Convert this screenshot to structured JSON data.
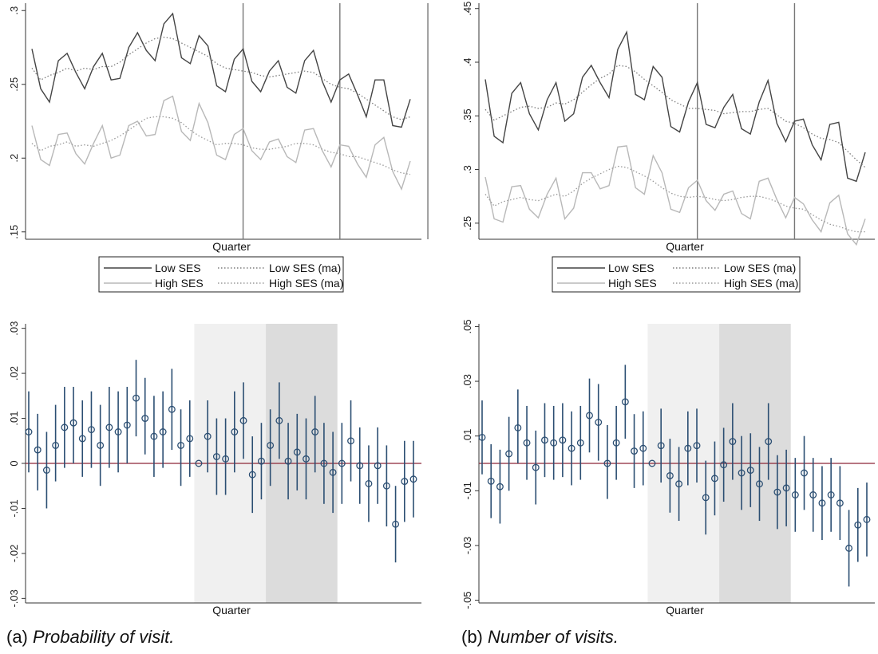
{
  "captions": [
    {
      "label": "(a)",
      "text": "Probability of visit."
    },
    {
      "label": "(b)",
      "text": "Number of visits."
    }
  ],
  "colors": {
    "low_ses": "#444444",
    "high_ses": "#b8b8b8",
    "ma_low": "#7d7d7d",
    "ma_high": "#9a9a9a",
    "marker": "#2b4e72",
    "zero_line": "#8c2637",
    "shade_light": "#f0f0f0",
    "shade_dark": "#dcdcdc",
    "vline": "#777777"
  },
  "chart_data": [
    {
      "type": "line",
      "panel": "a-top",
      "xlabel": "Quarter",
      "ylim": [
        0.145,
        0.305
      ],
      "yticks": [
        0.15,
        0.2,
        0.25,
        0.3
      ],
      "ytick_labels": [
        ".15",
        ".2",
        ".25",
        ".3"
      ],
      "vlines_at_index": [
        24,
        35,
        45
      ],
      "legend": {
        "placement": "bottom",
        "entries": [
          "Low SES",
          "Low SES (ma)",
          "High SES",
          "High SES (ma)"
        ]
      },
      "series": [
        {
          "name": "Low SES",
          "style": "solid",
          "values": [
            0.274,
            0.247,
            0.238,
            0.266,
            0.271,
            0.258,
            0.247,
            0.262,
            0.271,
            0.253,
            0.254,
            0.275,
            0.285,
            0.273,
            0.266,
            0.291,
            0.298,
            0.268,
            0.264,
            0.283,
            0.276,
            0.249,
            0.245,
            0.267,
            0.274,
            0.252,
            0.245,
            0.259,
            0.266,
            0.248,
            0.244,
            0.266,
            0.273,
            0.252,
            0.238,
            0.253,
            0.257,
            0.243,
            0.228,
            0.253,
            0.253,
            0.222,
            0.221,
            0.24
          ]
        },
        {
          "name": "Low SES (ma)",
          "style": "dotted",
          "values": [
            0.261,
            0.253,
            0.256,
            0.258,
            0.261,
            0.259,
            0.261,
            0.26,
            0.262,
            0.262,
            0.265,
            0.27,
            0.274,
            0.278,
            0.281,
            0.282,
            0.281,
            0.278,
            0.275,
            0.272,
            0.269,
            0.264,
            0.261,
            0.26,
            0.259,
            0.258,
            0.256,
            0.255,
            0.256,
            0.257,
            0.258,
            0.259,
            0.258,
            0.254,
            0.25,
            0.248,
            0.247,
            0.244,
            0.24,
            0.236,
            0.232,
            0.228,
            0.226,
            0.228
          ]
        },
        {
          "name": "High SES",
          "style": "solid",
          "values": [
            0.222,
            0.199,
            0.195,
            0.216,
            0.217,
            0.203,
            0.196,
            0.21,
            0.222,
            0.2,
            0.202,
            0.222,
            0.225,
            0.215,
            0.216,
            0.239,
            0.242,
            0.218,
            0.212,
            0.237,
            0.224,
            0.202,
            0.199,
            0.216,
            0.22,
            0.205,
            0.199,
            0.211,
            0.213,
            0.201,
            0.197,
            0.219,
            0.22,
            0.205,
            0.194,
            0.209,
            0.208,
            0.196,
            0.187,
            0.209,
            0.214,
            0.191,
            0.179,
            0.198
          ]
        },
        {
          "name": "High SES (ma)",
          "style": "dotted",
          "values": [
            0.21,
            0.205,
            0.208,
            0.209,
            0.211,
            0.208,
            0.209,
            0.208,
            0.21,
            0.212,
            0.215,
            0.219,
            0.223,
            0.227,
            0.228,
            0.228,
            0.227,
            0.224,
            0.219,
            0.215,
            0.212,
            0.209,
            0.21,
            0.21,
            0.209,
            0.207,
            0.206,
            0.206,
            0.207,
            0.208,
            0.21,
            0.21,
            0.209,
            0.206,
            0.204,
            0.203,
            0.201,
            0.201,
            0.199,
            0.197,
            0.195,
            0.192,
            0.19,
            0.189
          ]
        }
      ]
    },
    {
      "type": "line",
      "panel": "b-top",
      "xlabel": "Quarter",
      "ylim": [
        0.235,
        0.455
      ],
      "yticks": [
        0.25,
        0.3,
        0.35,
        0.4,
        0.45
      ],
      "ytick_labels": [
        ".25",
        ".3",
        ".35",
        ".4",
        ".45"
      ],
      "vlines_at_index": [
        24,
        35,
        45
      ],
      "legend": {
        "placement": "bottom",
        "entries": [
          "Low SES",
          "Low SES (ma)",
          "High SES",
          "High SES (ma)"
        ]
      },
      "series": [
        {
          "name": "Low SES",
          "style": "solid",
          "values": [
            0.384,
            0.331,
            0.325,
            0.371,
            0.381,
            0.352,
            0.337,
            0.365,
            0.381,
            0.345,
            0.352,
            0.386,
            0.397,
            0.381,
            0.367,
            0.412,
            0.428,
            0.37,
            0.365,
            0.396,
            0.386,
            0.34,
            0.335,
            0.363,
            0.381,
            0.342,
            0.339,
            0.358,
            0.37,
            0.338,
            0.333,
            0.363,
            0.383,
            0.343,
            0.326,
            0.345,
            0.347,
            0.323,
            0.309,
            0.342,
            0.344,
            0.292,
            0.289,
            0.316
          ]
        },
        {
          "name": "Low SES (ma)",
          "style": "dotted",
          "values": [
            0.356,
            0.346,
            0.35,
            0.354,
            0.358,
            0.359,
            0.357,
            0.358,
            0.362,
            0.361,
            0.365,
            0.372,
            0.379,
            0.385,
            0.389,
            0.397,
            0.396,
            0.391,
            0.384,
            0.378,
            0.372,
            0.365,
            0.361,
            0.357,
            0.357,
            0.356,
            0.355,
            0.352,
            0.353,
            0.354,
            0.354,
            0.356,
            0.357,
            0.351,
            0.345,
            0.343,
            0.339,
            0.333,
            0.329,
            0.328,
            0.325,
            0.317,
            0.309,
            0.302
          ]
        },
        {
          "name": "High SES",
          "style": "solid",
          "values": [
            0.293,
            0.254,
            0.251,
            0.284,
            0.285,
            0.263,
            0.255,
            0.277,
            0.292,
            0.254,
            0.264,
            0.297,
            0.297,
            0.282,
            0.285,
            0.321,
            0.322,
            0.283,
            0.277,
            0.313,
            0.297,
            0.263,
            0.26,
            0.283,
            0.29,
            0.271,
            0.262,
            0.277,
            0.28,
            0.259,
            0.254,
            0.289,
            0.292,
            0.272,
            0.255,
            0.274,
            0.268,
            0.253,
            0.242,
            0.269,
            0.276,
            0.24,
            0.23,
            0.254
          ]
        },
        {
          "name": "High SES (ma)",
          "style": "dotted",
          "values": [
            0.277,
            0.266,
            0.27,
            0.272,
            0.274,
            0.272,
            0.271,
            0.274,
            0.277,
            0.275,
            0.28,
            0.287,
            0.292,
            0.296,
            0.3,
            0.303,
            0.302,
            0.298,
            0.294,
            0.289,
            0.283,
            0.278,
            0.275,
            0.274,
            0.275,
            0.274,
            0.272,
            0.271,
            0.272,
            0.274,
            0.275,
            0.275,
            0.273,
            0.27,
            0.266,
            0.264,
            0.263,
            0.258,
            0.253,
            0.249,
            0.247,
            0.244,
            0.242,
            0.242
          ]
        }
      ]
    },
    {
      "type": "scatter",
      "panel": "a-bottom",
      "xlabel": "Quarter",
      "ylim": [
        -0.031,
        0.031
      ],
      "yticks": [
        -0.03,
        -0.02,
        -0.01,
        0,
        0.01,
        0.02,
        0.03
      ],
      "ytick_labels": [
        "-.03",
        "-.02",
        "-.01",
        "0",
        ".01",
        ".02",
        ".03"
      ],
      "shaded_regions_index": [
        [
          19,
          27
        ],
        [
          27,
          35
        ]
      ],
      "reference_line": 0,
      "points": [
        {
          "est": 0.007,
          "lo": -0.002,
          "hi": 0.016
        },
        {
          "est": 0.003,
          "lo": -0.006,
          "hi": 0.011
        },
        {
          "est": -0.0015,
          "lo": -0.01,
          "hi": 0.007
        },
        {
          "est": 0.004,
          "lo": -0.004,
          "hi": 0.013
        },
        {
          "est": 0.008,
          "lo": -0.001,
          "hi": 0.017
        },
        {
          "est": 0.009,
          "lo": 0.0,
          "hi": 0.017
        },
        {
          "est": 0.0055,
          "lo": -0.003,
          "hi": 0.014
        },
        {
          "est": 0.0075,
          "lo": -0.001,
          "hi": 0.016
        },
        {
          "est": 0.004,
          "lo": -0.005,
          "hi": 0.013
        },
        {
          "est": 0.008,
          "lo": -0.001,
          "hi": 0.017
        },
        {
          "est": 0.007,
          "lo": -0.002,
          "hi": 0.016
        },
        {
          "est": 0.0085,
          "lo": 0.0,
          "hi": 0.017
        },
        {
          "est": 0.0145,
          "lo": 0.006,
          "hi": 0.023
        },
        {
          "est": 0.01,
          "lo": 0.002,
          "hi": 0.019
        },
        {
          "est": 0.006,
          "lo": -0.003,
          "hi": 0.015
        },
        {
          "est": 0.007,
          "lo": -0.001,
          "hi": 0.016
        },
        {
          "est": 0.012,
          "lo": 0.003,
          "hi": 0.021
        },
        {
          "est": 0.004,
          "lo": -0.005,
          "hi": 0.012
        },
        {
          "est": 0.0055,
          "lo": -0.003,
          "hi": 0.014
        },
        {
          "est": 0.0,
          "lo": 0.0,
          "hi": 0.0
        },
        {
          "est": 0.006,
          "lo": -0.002,
          "hi": 0.014
        },
        {
          "est": 0.0015,
          "lo": -0.007,
          "hi": 0.01
        },
        {
          "est": 0.001,
          "lo": -0.007,
          "hi": 0.01
        },
        {
          "est": 0.007,
          "lo": -0.002,
          "hi": 0.016
        },
        {
          "est": 0.0095,
          "lo": 0.001,
          "hi": 0.018
        },
        {
          "est": -0.0025,
          "lo": -0.011,
          "hi": 0.006
        },
        {
          "est": 0.0005,
          "lo": -0.008,
          "hi": 0.009
        },
        {
          "est": 0.004,
          "lo": -0.005,
          "hi": 0.012
        },
        {
          "est": 0.0095,
          "lo": 0.001,
          "hi": 0.018
        },
        {
          "est": 0.0005,
          "lo": -0.008,
          "hi": 0.009
        },
        {
          "est": 0.0025,
          "lo": -0.006,
          "hi": 0.011
        },
        {
          "est": 0.001,
          "lo": -0.008,
          "hi": 0.01
        },
        {
          "est": 0.007,
          "lo": -0.002,
          "hi": 0.015
        },
        {
          "est": 0.0,
          "lo": -0.009,
          "hi": 0.009
        },
        {
          "est": -0.002,
          "lo": -0.011,
          "hi": 0.007
        },
        {
          "est": 0.0,
          "lo": -0.009,
          "hi": 0.009
        },
        {
          "est": 0.005,
          "lo": -0.004,
          "hi": 0.014
        },
        {
          "est": -0.0005,
          "lo": -0.009,
          "hi": 0.008
        },
        {
          "est": -0.0045,
          "lo": -0.013,
          "hi": 0.004
        },
        {
          "est": -0.0005,
          "lo": -0.009,
          "hi": 0.008
        },
        {
          "est": -0.005,
          "lo": -0.014,
          "hi": 0.004
        },
        {
          "est": -0.0135,
          "lo": -0.022,
          "hi": -0.005
        },
        {
          "est": -0.004,
          "lo": -0.013,
          "hi": 0.005
        },
        {
          "est": -0.0035,
          "lo": -0.012,
          "hi": 0.005
        }
      ]
    },
    {
      "type": "scatter",
      "panel": "b-bottom",
      "xlabel": "Quarter",
      "ylim": [
        -0.051,
        0.051
      ],
      "yticks": [
        -0.05,
        -0.03,
        -0.01,
        0.01,
        0.03,
        0.05
      ],
      "ytick_labels": [
        "-.05",
        "-.03",
        "-.01",
        ".01",
        ".03",
        ".05"
      ],
      "shaded_regions_index": [
        [
          19,
          27
        ],
        [
          27,
          35
        ]
      ],
      "reference_line": 0,
      "points": [
        {
          "est": 0.0095,
          "lo": -0.004,
          "hi": 0.023
        },
        {
          "est": -0.0065,
          "lo": -0.02,
          "hi": 0.007
        },
        {
          "est": -0.0085,
          "lo": -0.022,
          "hi": 0.005
        },
        {
          "est": 0.0035,
          "lo": -0.01,
          "hi": 0.017
        },
        {
          "est": 0.013,
          "lo": 0.0,
          "hi": 0.027
        },
        {
          "est": 0.0075,
          "lo": -0.006,
          "hi": 0.021
        },
        {
          "est": -0.0015,
          "lo": -0.015,
          "hi": 0.012
        },
        {
          "est": 0.0085,
          "lo": -0.005,
          "hi": 0.022
        },
        {
          "est": 0.0075,
          "lo": -0.006,
          "hi": 0.021
        },
        {
          "est": 0.0085,
          "lo": -0.005,
          "hi": 0.022
        },
        {
          "est": 0.0055,
          "lo": -0.008,
          "hi": 0.019
        },
        {
          "est": 0.0075,
          "lo": -0.006,
          "hi": 0.021
        },
        {
          "est": 0.0175,
          "lo": 0.004,
          "hi": 0.031
        },
        {
          "est": 0.015,
          "lo": 0.001,
          "hi": 0.029
        },
        {
          "est": 0.0,
          "lo": -0.013,
          "hi": 0.014
        },
        {
          "est": 0.0075,
          "lo": -0.006,
          "hi": 0.021
        },
        {
          "est": 0.0225,
          "lo": 0.009,
          "hi": 0.036
        },
        {
          "est": 0.0045,
          "lo": -0.009,
          "hi": 0.018
        },
        {
          "est": 0.0055,
          "lo": -0.008,
          "hi": 0.019
        },
        {
          "est": 0.0,
          "lo": 0.0,
          "hi": 0.0
        },
        {
          "est": 0.0065,
          "lo": -0.007,
          "hi": 0.02
        },
        {
          "est": -0.0045,
          "lo": -0.018,
          "hi": 0.009
        },
        {
          "est": -0.0075,
          "lo": -0.021,
          "hi": 0.006
        },
        {
          "est": 0.0055,
          "lo": -0.008,
          "hi": 0.019
        },
        {
          "est": 0.0065,
          "lo": -0.007,
          "hi": 0.02
        },
        {
          "est": -0.0125,
          "lo": -0.026,
          "hi": 0.001
        },
        {
          "est": -0.0055,
          "lo": -0.019,
          "hi": 0.008
        },
        {
          "est": -0.0005,
          "lo": -0.014,
          "hi": 0.013
        },
        {
          "est": 0.008,
          "lo": -0.006,
          "hi": 0.022
        },
        {
          "est": -0.0035,
          "lo": -0.017,
          "hi": 0.01
        },
        {
          "est": -0.0025,
          "lo": -0.016,
          "hi": 0.011
        },
        {
          "est": -0.0075,
          "lo": -0.021,
          "hi": 0.006
        },
        {
          "est": 0.008,
          "lo": -0.006,
          "hi": 0.022
        },
        {
          "est": -0.0105,
          "lo": -0.024,
          "hi": 0.003
        },
        {
          "est": -0.009,
          "lo": -0.023,
          "hi": 0.005
        },
        {
          "est": -0.0115,
          "lo": -0.025,
          "hi": 0.002
        },
        {
          "est": -0.0035,
          "lo": -0.017,
          "hi": 0.01
        },
        {
          "est": -0.0115,
          "lo": -0.025,
          "hi": 0.002
        },
        {
          "est": -0.0145,
          "lo": -0.028,
          "hi": -0.001
        },
        {
          "est": -0.0115,
          "lo": -0.025,
          "hi": 0.002
        },
        {
          "est": -0.0145,
          "lo": -0.028,
          "hi": -0.001
        },
        {
          "est": -0.031,
          "lo": -0.045,
          "hi": -0.017
        },
        {
          "est": -0.0225,
          "lo": -0.036,
          "hi": -0.009
        },
        {
          "est": -0.0205,
          "lo": -0.034,
          "hi": -0.007
        }
      ]
    }
  ]
}
